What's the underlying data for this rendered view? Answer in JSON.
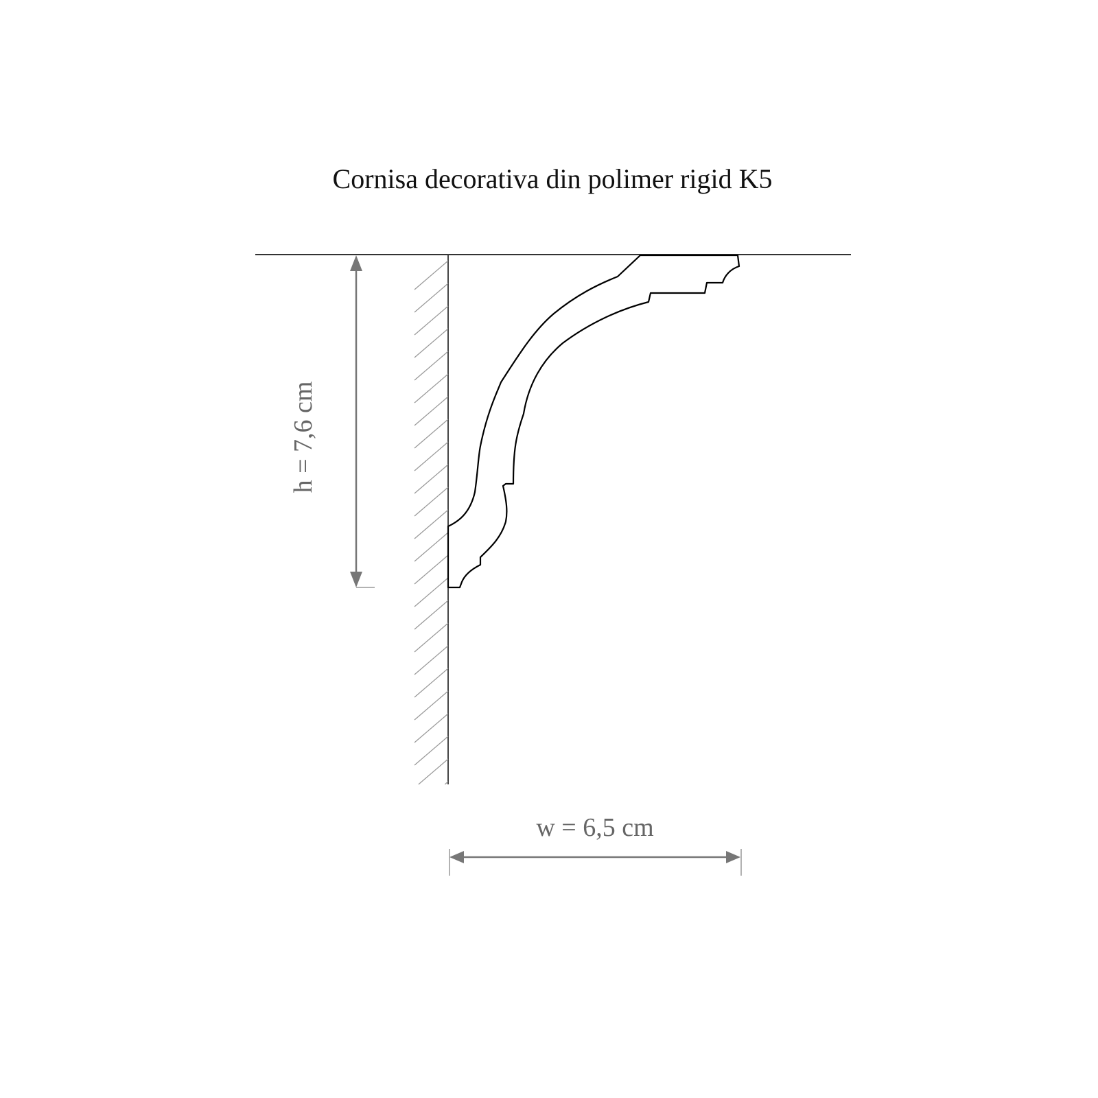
{
  "title": "Cornisa decorativa din polimer rigid K5",
  "dimensions": {
    "height_label": "h = 7,6 cm",
    "width_label": "w = 6,5 cm"
  },
  "colors": {
    "profile": "#000000",
    "dimension": "#666666",
    "hatch": "#999999"
  }
}
